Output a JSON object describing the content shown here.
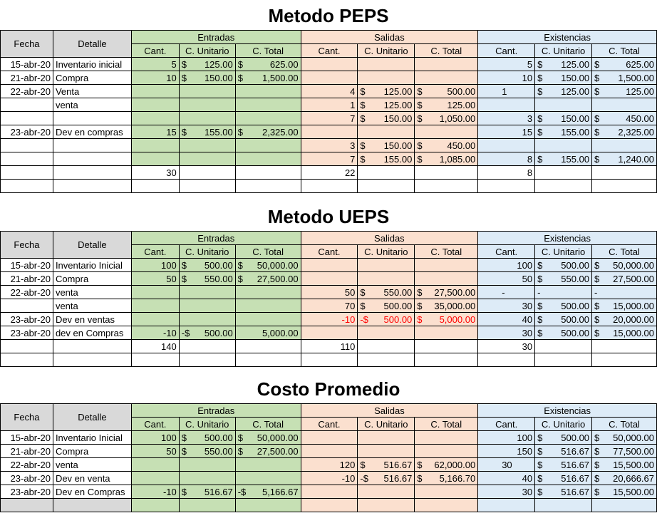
{
  "sections": {
    "peps": {
      "title": "Metodo PEPS",
      "headers": {
        "fecha": "Fecha",
        "detalle": "Detalle",
        "entradas": "Entradas",
        "salidas": "Salidas",
        "existencias": "Existencias",
        "cant": "Cant.",
        "cunit": "C. Unitario",
        "ctotal": "C. Total"
      },
      "rows": [
        [
          "15-abr-20",
          "Inventario inicial",
          "5",
          "$",
          "125.00",
          "$",
          "625.00",
          "",
          "",
          "",
          "",
          "",
          "",
          "5",
          "$",
          "125.00",
          "$",
          "625.00"
        ],
        [
          "21-abr-20",
          "Compra",
          "10",
          "$",
          "150.00",
          "$",
          "1,500.00",
          "",
          "",
          "",
          "",
          "",
          "",
          "10",
          "$",
          "150.00",
          "$",
          "1,500.00"
        ],
        [
          "22-abr-20",
          "Venta",
          "",
          "",
          "",
          "",
          "",
          "4",
          "$",
          "125.00",
          "$",
          "500.00",
          "1",
          "",
          "$",
          "125.00",
          "$",
          "125.00"
        ],
        [
          "",
          "venta",
          "",
          "",
          "",
          "",
          "",
          "1",
          "$",
          "125.00",
          "$",
          "125.00",
          "",
          "",
          "",
          "",
          "",
          ""
        ],
        [
          "",
          "",
          "",
          "",
          "",
          "",
          "",
          "7",
          "$",
          "150.00",
          "$",
          "1,050.00",
          "",
          "3",
          "$",
          "150.00",
          "$",
          "450.00"
        ],
        [
          "23-abr-20",
          "Dev en compras",
          "15",
          "$",
          "155.00",
          "$",
          "2,325.00",
          "",
          "",
          "",
          "",
          "",
          "",
          "15",
          "$",
          "155.00",
          "$",
          "2,325.00"
        ],
        [
          "",
          "",
          "",
          "",
          "",
          "",
          "",
          "3",
          "$",
          "150.00",
          "$",
          "450.00",
          "",
          "",
          "",
          "",
          "",
          ""
        ],
        [
          "",
          "",
          "",
          "",
          "",
          "",
          "",
          "7",
          "$",
          "155.00",
          "$",
          "1,085.00",
          "",
          "8",
          "$",
          "155.00",
          "$",
          "1,240.00"
        ]
      ],
      "totals": {
        "entradas": "30",
        "salidas": "22",
        "existencias": "8"
      }
    },
    "ueps": {
      "title": "Metodo UEPS",
      "headers": {
        "fecha": "Fecha",
        "detalle": "Detalle",
        "entradas": "Entradas",
        "salidas": "Salidas",
        "existencias": "Existencias",
        "cant": "Cant.",
        "cunit": "C. Unitario",
        "ctotal": "C. Total"
      },
      "rows": [
        [
          "15-abr-20",
          "Inventario Inicial",
          "100",
          "$",
          "500.00",
          "$",
          "50,000.00",
          "",
          "",
          "",
          "",
          "",
          "",
          "100",
          "$",
          "500.00",
          "$",
          "50,000.00"
        ],
        [
          "21-abr-20",
          "Compra",
          "50",
          "$",
          "550.00",
          "$",
          "27,500.00",
          "",
          "",
          "",
          "",
          "",
          "",
          "50",
          "$",
          "550.00",
          "$",
          "27,500.00"
        ],
        [
          "22-abr-20",
          "venta",
          "",
          "",
          "",
          "",
          "",
          "50",
          "$",
          "550.00",
          "$",
          "27,500.00",
          "-",
          "",
          "-",
          "",
          "-",
          ""
        ],
        [
          "",
          "venta",
          "",
          "",
          "",
          "",
          "",
          "70",
          "$",
          "500.00",
          "$",
          "35,000.00",
          "",
          "30",
          "$",
          "500.00",
          "$",
          "15,000.00"
        ],
        [
          "23-abr-20",
          "Dev en ventas",
          "",
          "",
          "",
          "",
          "",
          "-10",
          "-$",
          "500.00",
          "$",
          "5,000.00",
          "",
          "40",
          "$",
          "500.00",
          "$",
          "20,000.00"
        ],
        [
          "23-abr-20",
          "dev en Compras",
          "-10",
          "-$",
          "500.00",
          "",
          "5,000.00",
          "",
          "",
          "",
          "",
          "",
          "",
          "30",
          "$",
          "500.00",
          "$",
          "15,000.00"
        ]
      ],
      "totals": {
        "entradas": "140",
        "salidas": "110",
        "existencias": "30"
      }
    },
    "promedio": {
      "title": "Costo Promedio",
      "headers": {
        "fecha": "Fecha",
        "detalle": "Detalle",
        "entradas": "Entradas",
        "salidas": "Salidas",
        "existencias": "Existencias",
        "cant": "Cant.",
        "cunit": "C. Unitario",
        "ctotal": "C. Total"
      },
      "rows": [
        [
          "15-abr-20",
          "Inventario Inicial",
          "100",
          "$",
          "500.00",
          "$",
          "50,000.00",
          "",
          "",
          "",
          "",
          "",
          "",
          "100",
          "$",
          "500.00",
          "$",
          "50,000.00"
        ],
        [
          "21-abr-20",
          "Compra",
          "50",
          "$",
          "550.00",
          "$",
          "27,500.00",
          "",
          "",
          "",
          "",
          "",
          "",
          "150",
          "$",
          "516.67",
          "$",
          "77,500.00"
        ],
        [
          "22-abr-20",
          "venta",
          "",
          "",
          "",
          "",
          "",
          "120",
          "$",
          "516.67",
          "$",
          "62,000.00",
          "30",
          "",
          "$",
          "516.67",
          "$",
          "15,500.00"
        ],
        [
          "23-abr-20",
          "Dev en venta",
          "",
          "",
          "",
          "",
          "",
          "-10",
          "-$",
          "516.67",
          "$",
          "5,166.70",
          "",
          "40",
          "$",
          "516.67",
          "$",
          "20,666.67"
        ],
        [
          "23-abr-20",
          "Dev en Compras",
          "-10",
          "$",
          "516.67",
          "-$",
          "5,166.67",
          "",
          "",
          "",
          "",
          "",
          "",
          "30",
          "$",
          "516.67",
          "$",
          "15,500.00"
        ]
      ]
    }
  }
}
